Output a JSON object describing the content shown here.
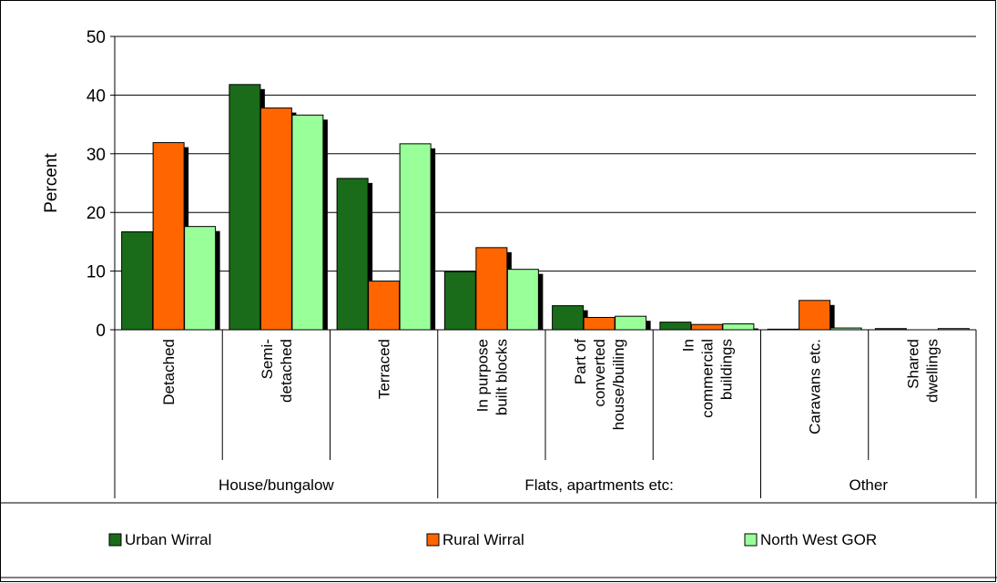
{
  "chart_data": {
    "type": "bar",
    "ylabel": "Percent",
    "ylim": [
      0,
      50
    ],
    "yticks": [
      0,
      10,
      20,
      30,
      40,
      50
    ],
    "grid": true,
    "legend_position": "bottom",
    "categories": [
      "Detached",
      "Semi-\ndetached",
      "Terraced",
      "In purpose\nbuilt blocks",
      "Part of\nconverted\nhouse/builing",
      "In\ncommercial\nbuildings",
      "Caravans etc.",
      "Shared\ndwellings"
    ],
    "groups": [
      {
        "label": "House/bungalow",
        "span": 3
      },
      {
        "label": "Flats, apartments etc:",
        "span": 3
      },
      {
        "label": "Other",
        "span": 2
      }
    ],
    "series": [
      {
        "name": "Urban Wirral",
        "color": "#1a6b1a",
        "values": [
          16.7,
          41.8,
          25.8,
          9.9,
          4.1,
          1.3,
          0.1,
          0.2
        ]
      },
      {
        "name": "Rural Wirral",
        "color": "#ff6600",
        "values": [
          31.9,
          37.8,
          8.3,
          14.0,
          2.1,
          0.9,
          5.0,
          0.0
        ]
      },
      {
        "name": "North West GOR",
        "color": "#99ff99",
        "values": [
          17.6,
          36.6,
          31.7,
          10.3,
          2.3,
          1.0,
          0.3,
          0.2
        ]
      }
    ]
  }
}
